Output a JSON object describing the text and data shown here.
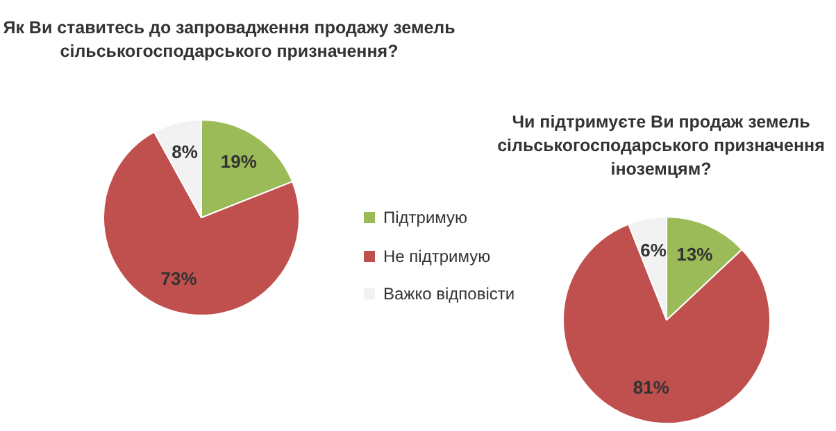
{
  "chart_data": [
    {
      "type": "pie",
      "title": "Як Ви ставитесь до запровадження продажу земель сільськогосподарського призначення?",
      "categories": [
        "Підтримую",
        "Не підтримую",
        "Важко відповісти"
      ],
      "values": [
        19,
        73,
        8
      ],
      "colors": [
        "#9bbb59",
        "#c0504d",
        "#f2f2f2"
      ],
      "value_labels": [
        "19%",
        "73%",
        "8%"
      ],
      "legend": "right"
    },
    {
      "type": "pie",
      "title": "Чи підтримуєте Ви продаж земель сільськогосподарського призначення іноземцям?",
      "categories": [
        null,
        null,
        null
      ],
      "values": [
        13,
        81,
        6
      ],
      "colors": [
        "#9bbb59",
        "#c0504d",
        "#f2f2f2"
      ],
      "value_labels": [
        "13%",
        "81%",
        "6%"
      ]
    }
  ]
}
